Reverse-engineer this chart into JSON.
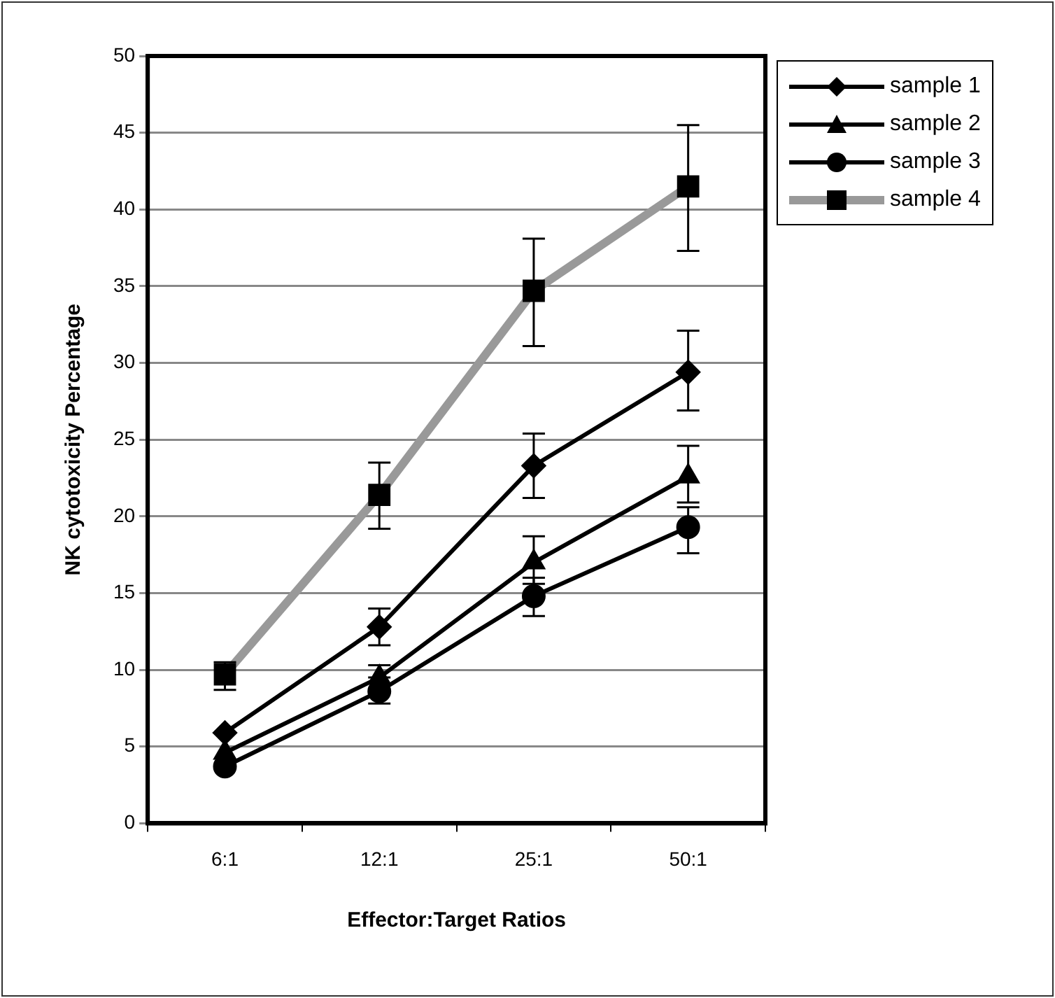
{
  "chart_data": {
    "type": "line",
    "xlabel": "Effector:Target Ratios",
    "ylabel": "NK cytotoxicity Percentage",
    "categories": [
      "6:1",
      "12:1",
      "25:1",
      "50:1"
    ],
    "ylim": [
      0,
      50
    ],
    "yticks": [
      0,
      5,
      10,
      15,
      20,
      25,
      30,
      35,
      40,
      45,
      50
    ],
    "grid": "y",
    "legend": "top right",
    "line_style": "solid",
    "series": [
      {
        "name": "sample 1",
        "color": "#000000",
        "marker": "diamond",
        "values": [
          5.9,
          12.8,
          23.3,
          29.4
        ],
        "errors": [
          null,
          [
            11.6,
            14.0
          ],
          [
            21.2,
            25.4
          ],
          [
            26.9,
            32.1
          ]
        ]
      },
      {
        "name": "sample 2",
        "color": "#000000",
        "marker": "triangle",
        "values": [
          4.6,
          9.5,
          17.0,
          22.6
        ],
        "errors": [
          null,
          [
            9.5,
            10.3
          ],
          [
            15.6,
            18.7
          ],
          [
            20.9,
            24.6
          ]
        ]
      },
      {
        "name": "sample 3",
        "color": "#000000",
        "marker": "circle",
        "values": [
          3.7,
          8.6,
          14.8,
          19.3
        ],
        "errors": [
          null,
          [
            7.8,
            8.6
          ],
          [
            13.5,
            16.0
          ],
          [
            17.6,
            20.6
          ]
        ]
      },
      {
        "name": "sample 4",
        "color": "#999999",
        "marker": "square",
        "values": [
          9.7,
          21.4,
          34.7,
          41.5
        ],
        "errors": [
          [
            8.7,
            10.5
          ],
          [
            19.2,
            23.5
          ],
          [
            31.1,
            38.1
          ],
          [
            37.3,
            45.5
          ]
        ]
      }
    ]
  }
}
